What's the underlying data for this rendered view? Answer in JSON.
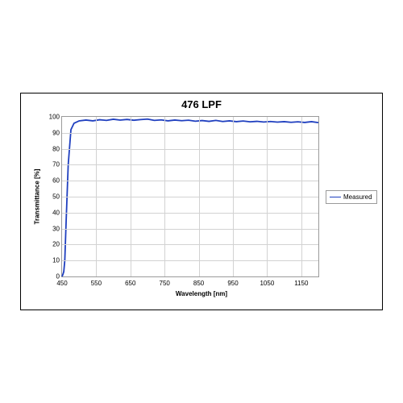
{
  "chart": {
    "type": "line",
    "title": "476 LPF",
    "title_fontsize": 13,
    "title_fontweight": "bold",
    "xlabel": "Wavelength [nm]",
    "ylabel": "Transmittance [%]",
    "label_fontsize": 8,
    "label_fontweight": "bold",
    "tick_fontsize": 8,
    "xlim": [
      450,
      1200
    ],
    "ylim": [
      0,
      100
    ],
    "xtick_step": 100,
    "xtick_start": 450,
    "ytick_step": 10,
    "grid": true,
    "grid_color": "#d2d2d2",
    "plot_border_color": "#9a9a9a",
    "outer_border_color": "#000000",
    "background_color": "#ffffff",
    "series": [
      {
        "name": "Measured",
        "color": "#1f3fbf",
        "line_width": 1.8,
        "x": [
          450,
          452,
          455,
          458,
          462,
          468,
          476,
          485,
          500,
          520,
          540,
          560,
          580,
          600,
          620,
          640,
          660,
          680,
          700,
          720,
          740,
          760,
          780,
          800,
          820,
          840,
          860,
          880,
          900,
          920,
          940,
          960,
          980,
          1000,
          1020,
          1040,
          1060,
          1080,
          1100,
          1120,
          1140,
          1160,
          1180,
          1200
        ],
        "y": [
          0,
          1,
          3,
          10,
          35,
          70,
          92,
          96,
          97.5,
          98.0,
          97.5,
          98.2,
          97.8,
          98.5,
          98.0,
          98.4,
          97.9,
          98.3,
          98.6,
          97.8,
          98.1,
          97.5,
          98.0,
          97.6,
          97.9,
          97.3,
          97.7,
          97.2,
          97.8,
          97.1,
          97.5,
          97.0,
          97.4,
          96.9,
          97.2,
          96.8,
          97.1,
          96.7,
          97.0,
          96.6,
          96.9,
          96.5,
          97.0,
          96.4
        ]
      }
    ],
    "legend": {
      "position": "right",
      "border_color": "#9a9a9a",
      "background_color": "#ffffff",
      "fontsize": 8
    }
  }
}
